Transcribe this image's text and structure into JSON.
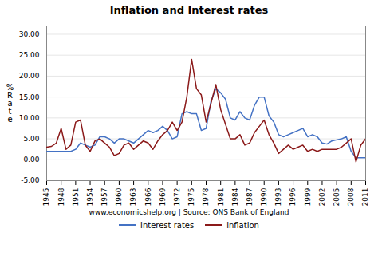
{
  "chart_data": {
    "type": "line",
    "title": "Inflation and Interest rates",
    "ylabel": "%\nR\na\nt\ne",
    "annotations": [
      "www.economicshelp.org | Source: ONS Bank of England"
    ],
    "x": [
      1945,
      1946,
      1947,
      1948,
      1949,
      1950,
      1951,
      1952,
      1953,
      1954,
      1955,
      1956,
      1957,
      1958,
      1959,
      1960,
      1961,
      1962,
      1963,
      1964,
      1965,
      1966,
      1967,
      1968,
      1969,
      1970,
      1971,
      1972,
      1973,
      1974,
      1975,
      1976,
      1977,
      1978,
      1979,
      1980,
      1981,
      1982,
      1983,
      1984,
      1985,
      1986,
      1987,
      1988,
      1989,
      1990,
      1991,
      1992,
      1993,
      1994,
      1995,
      1996,
      1997,
      1998,
      1999,
      2000,
      2001,
      2002,
      2003,
      2004,
      2005,
      2006,
      2007,
      2008,
      2009,
      2010,
      2011
    ],
    "series": [
      {
        "name": "interest rates",
        "color": "#4472C4",
        "values": [
          2.0,
          2.0,
          2.0,
          2.0,
          2.0,
          2.0,
          2.5,
          4.0,
          3.5,
          3.0,
          3.5,
          5.5,
          5.5,
          5.0,
          4.0,
          5.0,
          5.0,
          4.5,
          4.0,
          5.0,
          6.0,
          7.0,
          6.5,
          7.0,
          8.0,
          7.0,
          5.0,
          5.5,
          11.0,
          11.5,
          11.0,
          11.0,
          7.0,
          7.5,
          14.0,
          17.0,
          16.0,
          14.5,
          10.0,
          9.5,
          11.5,
          10.0,
          9.5,
          13.0,
          15.0,
          15.0,
          10.5,
          9.0,
          6.0,
          5.5,
          6.0,
          6.5,
          7.0,
          7.5,
          5.5,
          6.0,
          5.5,
          4.0,
          3.75,
          4.5,
          4.75,
          5.0,
          5.5,
          2.0,
          0.5,
          0.5,
          0.5
        ]
      },
      {
        "name": "inflation",
        "color": "#8B1A1A",
        "values": [
          3.0,
          3.2,
          4.0,
          7.5,
          2.5,
          3.5,
          9.0,
          9.5,
          3.5,
          2.0,
          4.5,
          5.0,
          4.0,
          3.0,
          1.0,
          1.5,
          3.5,
          4.0,
          2.5,
          3.5,
          4.5,
          4.0,
          2.5,
          4.5,
          6.0,
          7.0,
          9.0,
          7.0,
          9.0,
          15.0,
          24.0,
          17.0,
          15.5,
          9.0,
          13.5,
          18.0,
          12.0,
          8.5,
          5.0,
          5.0,
          6.0,
          3.5,
          4.0,
          6.5,
          8.0,
          9.5,
          6.0,
          4.0,
          1.5,
          2.5,
          3.5,
          2.5,
          3.0,
          3.5,
          2.0,
          2.5,
          2.0,
          2.5,
          2.5,
          2.5,
          2.5,
          3.0,
          4.0,
          5.0,
          -0.5,
          3.5,
          5.0
        ]
      }
    ],
    "xlim": [
      1945,
      2011
    ],
    "xticks": [
      1945,
      1948,
      1951,
      1954,
      1957,
      1960,
      1963,
      1966,
      1969,
      1972,
      1975,
      1978,
      1981,
      1984,
      1987,
      1990,
      1993,
      1996,
      1999,
      2002,
      2005,
      2008,
      2011
    ],
    "ylim": [
      -5.0,
      32.0
    ],
    "yticks": [
      {
        "value": -5.0,
        "label": "-5.00"
      },
      {
        "value": 0.0,
        "label": "0.00"
      },
      {
        "value": 5.0,
        "label": "5.00"
      },
      {
        "value": 10.0,
        "label": "10.00"
      },
      {
        "value": 15.0,
        "label": "15.00"
      },
      {
        "value": 20.0,
        "label": "20.00"
      },
      {
        "value": 25.0,
        "label": "25.00"
      },
      {
        "value": 30.0,
        "label": "30.00"
      }
    ],
    "grid": true,
    "legend": "bottom"
  }
}
